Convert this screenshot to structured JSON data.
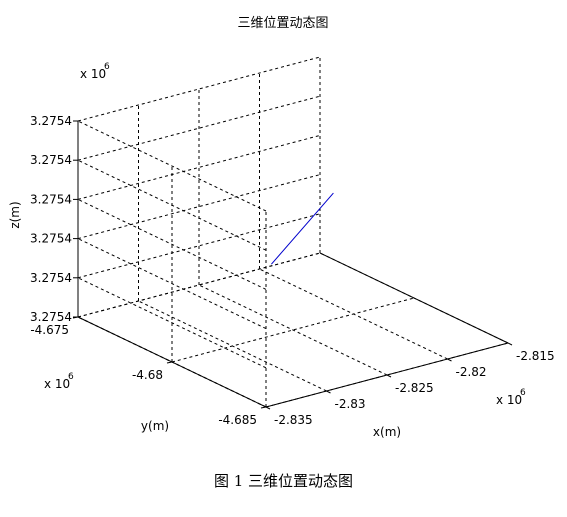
{
  "chart_data": {
    "type": "line",
    "title": "三维位置动态图",
    "xlabel": "x(m)",
    "ylabel": "y(m)",
    "zlabel": "z(m)",
    "x_multiplier": "x 10",
    "y_multiplier": "x 10",
    "z_multiplier": "x 10",
    "multiplier_exponent": "6",
    "xticks": [
      "-2.835",
      "-2.83",
      "-2.825",
      "-2.82",
      "-2.815"
    ],
    "yticks": [
      "-4.685",
      "-4.68",
      "-4.675"
    ],
    "zticks": [
      "3.2754",
      "3.2754",
      "3.2754",
      "3.2754",
      "3.2754",
      "3.2754"
    ],
    "xlim": [
      -2835000,
      -2815000
    ],
    "ylim": [
      -4685000,
      -4675000
    ],
    "grid": true,
    "line_color": "#0000cc",
    "series": [
      {
        "x": [
          -2833000,
          -2817000
        ],
        "y": [
          -4684000,
          -4677000
        ],
        "z_fraction": [
          0.65,
          0.43
        ]
      }
    ]
  },
  "caption": "图 1  三维位置动态图"
}
